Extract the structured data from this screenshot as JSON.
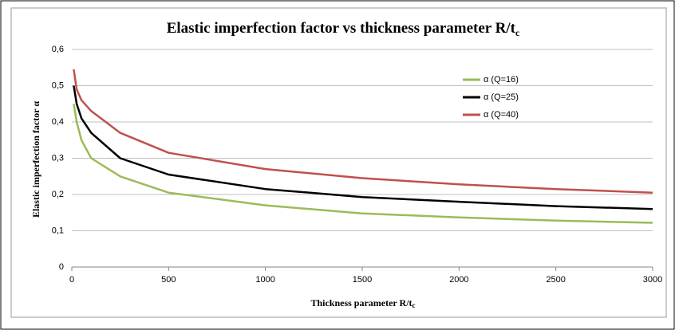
{
  "chart_data": {
    "type": "line",
    "title": "Elastic imperfection factor vs thickness parameter R/t",
    "title_sub": "c",
    "xlabel": "Thickness parameter R/t",
    "xlabel_sub": "c",
    "ylabel": "Elastic imperfection factor α",
    "x": [
      10,
      25,
      50,
      100,
      250,
      500,
      1000,
      1500,
      2000,
      2500,
      3000
    ],
    "series": [
      {
        "name": "α (Q=16)",
        "color": "#9bbb59",
        "values": [
          0.45,
          0.4,
          0.35,
          0.3,
          0.25,
          0.205,
          0.17,
          0.148,
          0.137,
          0.128,
          0.122
        ]
      },
      {
        "name": "α (Q=25)",
        "color": "#000000",
        "values": [
          0.5,
          0.45,
          0.41,
          0.37,
          0.3,
          0.255,
          0.215,
          0.193,
          0.18,
          0.168,
          0.16
        ]
      },
      {
        "name": "α (Q=40)",
        "color": "#c0504d",
        "values": [
          0.545,
          0.49,
          0.46,
          0.43,
          0.37,
          0.315,
          0.27,
          0.245,
          0.228,
          0.215,
          0.205
        ]
      }
    ],
    "xlim": [
      0,
      3000
    ],
    "xticks": [
      0,
      500,
      1000,
      1500,
      2000,
      2500,
      3000
    ],
    "ylim": [
      0,
      0.6
    ],
    "yticks": [
      0,
      {
        "value": 0.1,
        "label": "0,1"
      },
      {
        "value": 0.2,
        "label": "0,2"
      },
      {
        "value": 0.3,
        "label": "0,3"
      },
      {
        "value": 0.4,
        "label": "0,4"
      },
      {
        "value": 0.5,
        "label": "0,5"
      },
      {
        "value": 0.6,
        "label": "0,6"
      }
    ],
    "grid": true,
    "legend": "upper right"
  }
}
